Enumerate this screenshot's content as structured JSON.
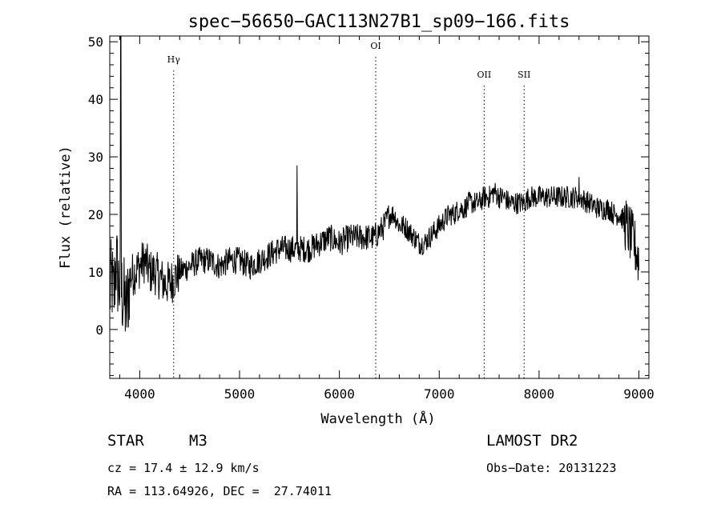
{
  "chart_data": {
    "type": "line",
    "title": "spec−56650−GAC113N27B1_sp09−166.fits",
    "xlabel": "Wavelength (Å)",
    "ylabel": "Flux (relative)",
    "xlim": [
      3700,
      9100
    ],
    "ylim": [
      -8.5,
      51
    ],
    "x_ticks": [
      4000,
      5000,
      6000,
      7000,
      8000,
      9000
    ],
    "y_ticks": [
      0,
      10,
      20,
      30,
      40,
      50
    ],
    "grid": false,
    "series": [
      {
        "values_description": "continuum",
        "x": [
          3700,
          3720,
          3740,
          3760,
          3790,
          3830,
          3870,
          3900,
          3950,
          4000,
          4050,
          4100,
          4150,
          4200,
          4250,
          4300,
          4350,
          4400,
          4500,
          4600,
          4700,
          4800,
          4900,
          5000,
          5100,
          5200,
          5300,
          5400,
          5500,
          5560,
          5600,
          5700,
          5800,
          5900,
          6000,
          6100,
          6200,
          6300,
          6350,
          6400,
          6450,
          6500,
          6550,
          6600,
          6650,
          6700,
          6750,
          6800,
          6850,
          6900,
          6950,
          7000,
          7050,
          7100,
          7150,
          7200,
          7250,
          7300,
          7350,
          7400,
          7450,
          7500,
          7550,
          7600,
          7650,
          7700,
          7750,
          7800,
          7850,
          7900,
          7950,
          8000,
          8100,
          8200,
          8300,
          8400,
          8500,
          8600,
          8700,
          8750,
          8800,
          8850,
          8900,
          8950,
          9000
        ],
        "y": [
          6,
          9,
          5,
          12,
          8,
          6,
          3,
          9,
          10,
          11,
          12,
          10,
          10,
          9,
          8,
          8,
          9,
          10,
          11,
          12,
          12,
          11,
          12,
          12,
          11,
          12,
          13,
          14,
          14,
          14,
          14,
          14,
          15,
          16,
          15,
          16,
          16,
          16,
          16,
          17,
          18,
          20,
          20,
          18,
          18,
          17,
          16,
          15,
          15,
          16,
          17,
          18,
          19,
          20,
          20,
          21,
          21,
          22,
          22,
          22,
          23,
          23,
          24,
          23,
          23,
          22,
          22,
          22,
          22,
          23,
          23,
          23,
          23,
          23,
          23,
          23,
          22,
          21,
          21,
          20,
          20,
          19,
          17,
          15,
          12
        ]
      }
    ],
    "spikes": [
      {
        "x": 3810,
        "y": 51
      },
      {
        "x": 5577,
        "y": 28.5
      },
      {
        "x": 8400,
        "y": 26.5
      }
    ],
    "line_markers": [
      {
        "label": "Hγ",
        "x": 4340
      },
      {
        "label": "OI",
        "x": 6364
      },
      {
        "label": "OII",
        "x": 7450
      },
      {
        "label": "SII",
        "x": 7850
      }
    ]
  },
  "footer": {
    "object_class": "STAR",
    "subclass": "M3",
    "survey": "LAMOST DR2",
    "cz": "cz = 17.4 ± 12.9 km/s",
    "radec": "RA = 113.64926, DEC =  27.74011",
    "obs_date": "Obs−Date: 20131223"
  }
}
